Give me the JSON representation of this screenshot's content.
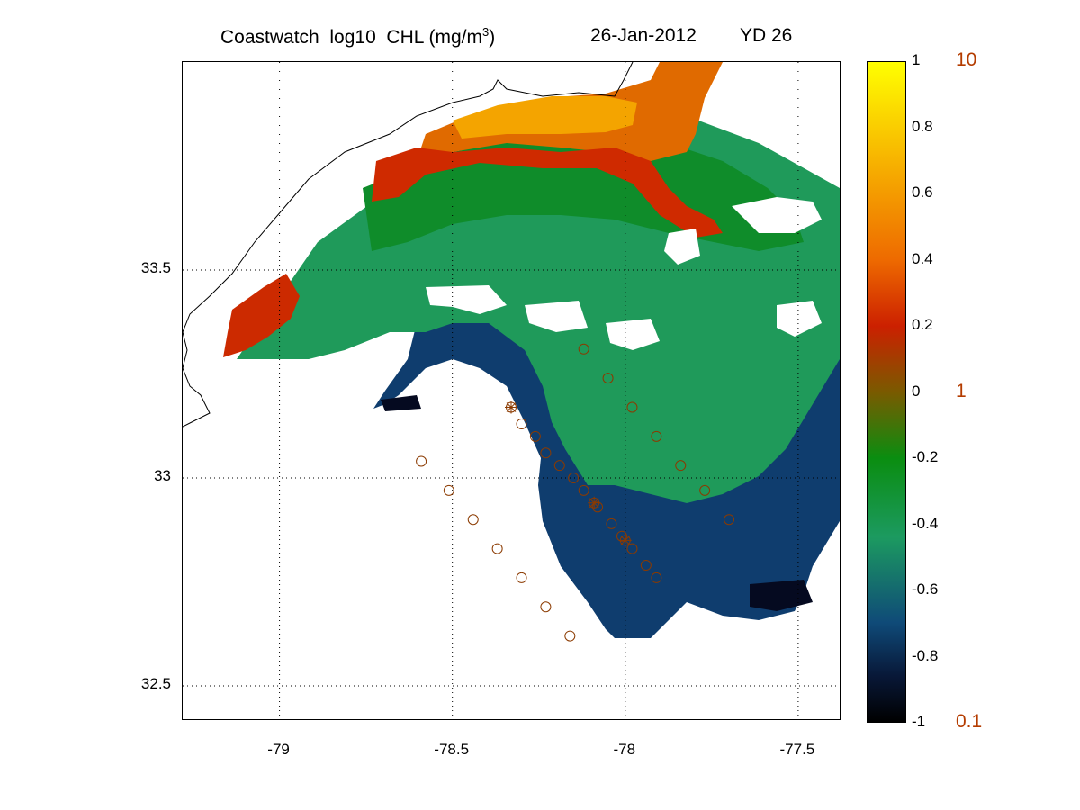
{
  "title": {
    "main": "Coastwatch  log10  CHL (mg/m",
    "superscript": "3",
    "close": ")",
    "date": "26-Jan-2012",
    "yearday": "YD 26"
  },
  "x_axis": {
    "ticks": [
      {
        "value": -79,
        "label": "-79"
      },
      {
        "value": -78.5,
        "label": "-78.5"
      },
      {
        "value": -78,
        "label": "-78"
      },
      {
        "value": -77.5,
        "label": "-77.5"
      }
    ],
    "range": [
      -79.28,
      -77.38
    ]
  },
  "y_axis": {
    "ticks": [
      {
        "value": 33.5,
        "label": "33.5"
      },
      {
        "value": 33,
        "label": "33"
      },
      {
        "value": 32.5,
        "label": "32.5"
      }
    ],
    "range": [
      32.42,
      34.0
    ]
  },
  "colorbar": {
    "range": [
      -1,
      1
    ],
    "colormap": [
      "#000000",
      "#081838",
      "#0f4a78",
      "#1c9a60",
      "#0a8d10",
      "#7a5a00",
      "#cc2000",
      "#ee6a00",
      "#f7b300",
      "#ffff00"
    ],
    "left_ticks": [
      {
        "value": 1,
        "label": "1"
      },
      {
        "value": 0.8,
        "label": "0.8"
      },
      {
        "value": 0.6,
        "label": "0.6"
      },
      {
        "value": 0.4,
        "label": "0.4"
      },
      {
        "value": 0.2,
        "label": "0.2"
      },
      {
        "value": 0,
        "label": "0"
      },
      {
        "value": -0.2,
        "label": "-0.2"
      },
      {
        "value": -0.4,
        "label": "-0.4"
      },
      {
        "value": -0.6,
        "label": "-0.6"
      },
      {
        "value": -0.8,
        "label": "-0.8"
      },
      {
        "value": -1,
        "label": "-1"
      }
    ],
    "right_ticks": [
      {
        "value": 1,
        "label": "10"
      },
      {
        "value": 0,
        "label": "1"
      },
      {
        "value": -1,
        "label": "0.1"
      }
    ],
    "right_label_color": "#b43c00"
  },
  "colors": {
    "station_marker": "#8b3a00",
    "coastline": "#000000",
    "grid": "#000000"
  },
  "stations": [
    [
      -78.12,
      33.31
    ],
    [
      -78.05,
      33.24
    ],
    [
      -77.98,
      33.17
    ],
    [
      -77.91,
      33.1
    ],
    [
      -77.84,
      33.03
    ],
    [
      -77.77,
      32.97
    ],
    [
      -77.7,
      32.9
    ],
    [
      -78.3,
      33.13
    ],
    [
      -78.26,
      33.1
    ],
    [
      -78.23,
      33.06
    ],
    [
      -78.19,
      33.03
    ],
    [
      -78.15,
      33.0
    ],
    [
      -78.12,
      32.97
    ],
    [
      -78.08,
      32.93
    ],
    [
      -78.04,
      32.89
    ],
    [
      -78.01,
      32.86
    ],
    [
      -77.98,
      32.83
    ],
    [
      -77.94,
      32.79
    ],
    [
      -77.91,
      32.76
    ],
    [
      -78.59,
      33.04
    ],
    [
      -78.51,
      32.97
    ],
    [
      -78.44,
      32.9
    ],
    [
      -78.37,
      32.83
    ],
    [
      -78.3,
      32.76
    ],
    [
      -78.23,
      32.69
    ],
    [
      -78.16,
      32.62
    ]
  ],
  "stations_starred": [
    [
      -78.33,
      33.17
    ],
    [
      -78.09,
      32.94
    ],
    [
      -78.0,
      32.85
    ]
  ]
}
